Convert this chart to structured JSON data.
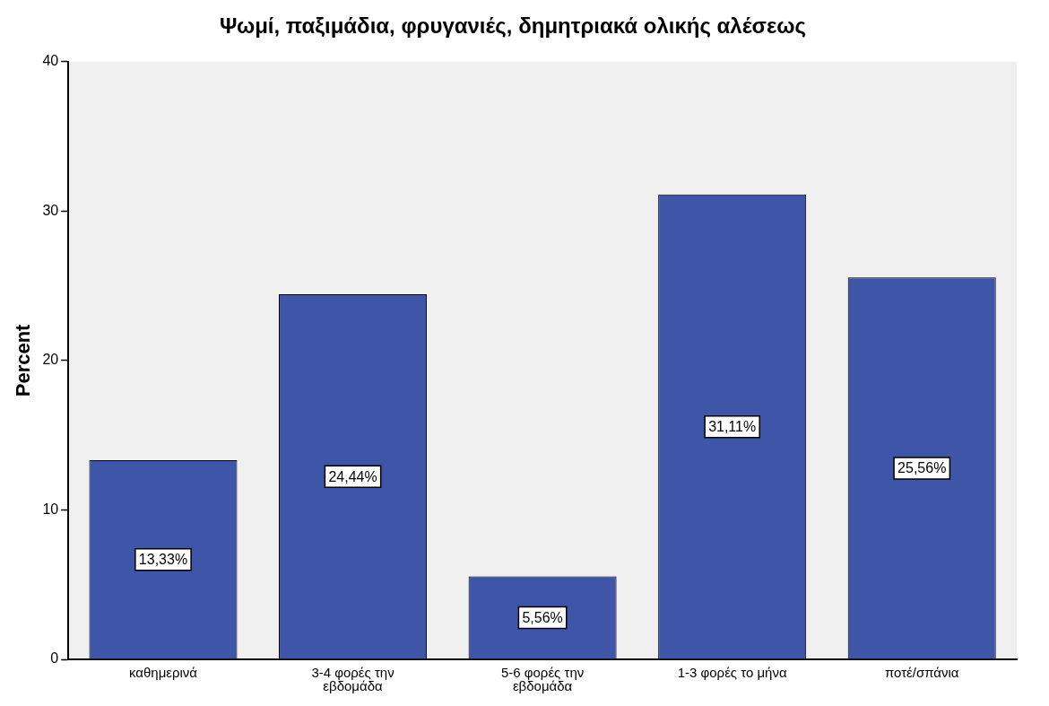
{
  "chart_data": {
    "type": "bar",
    "title": "Ψωμί, παξιμάδια, φρυγανιές, δημητριακά ολικής αλέσεως",
    "ylabel": "Percent",
    "categories": [
      "καθημερινά",
      "3-4 φορές την εβδομάδα",
      "5-6 φορές την εβδομάδα",
      "1-3 φορές το μήνα",
      "ποτέ/σπάνια"
    ],
    "values": [
      13.33,
      24.44,
      5.56,
      31.11,
      25.56
    ],
    "value_labels": [
      "13,33%",
      "24,44%",
      "5,56%",
      "31,11%",
      "25,56%"
    ],
    "color": "#3f55a8",
    "ylim": [
      0,
      40
    ],
    "yticks": [
      0,
      10,
      20,
      30,
      40
    ],
    "grid": false,
    "legend": false
  }
}
